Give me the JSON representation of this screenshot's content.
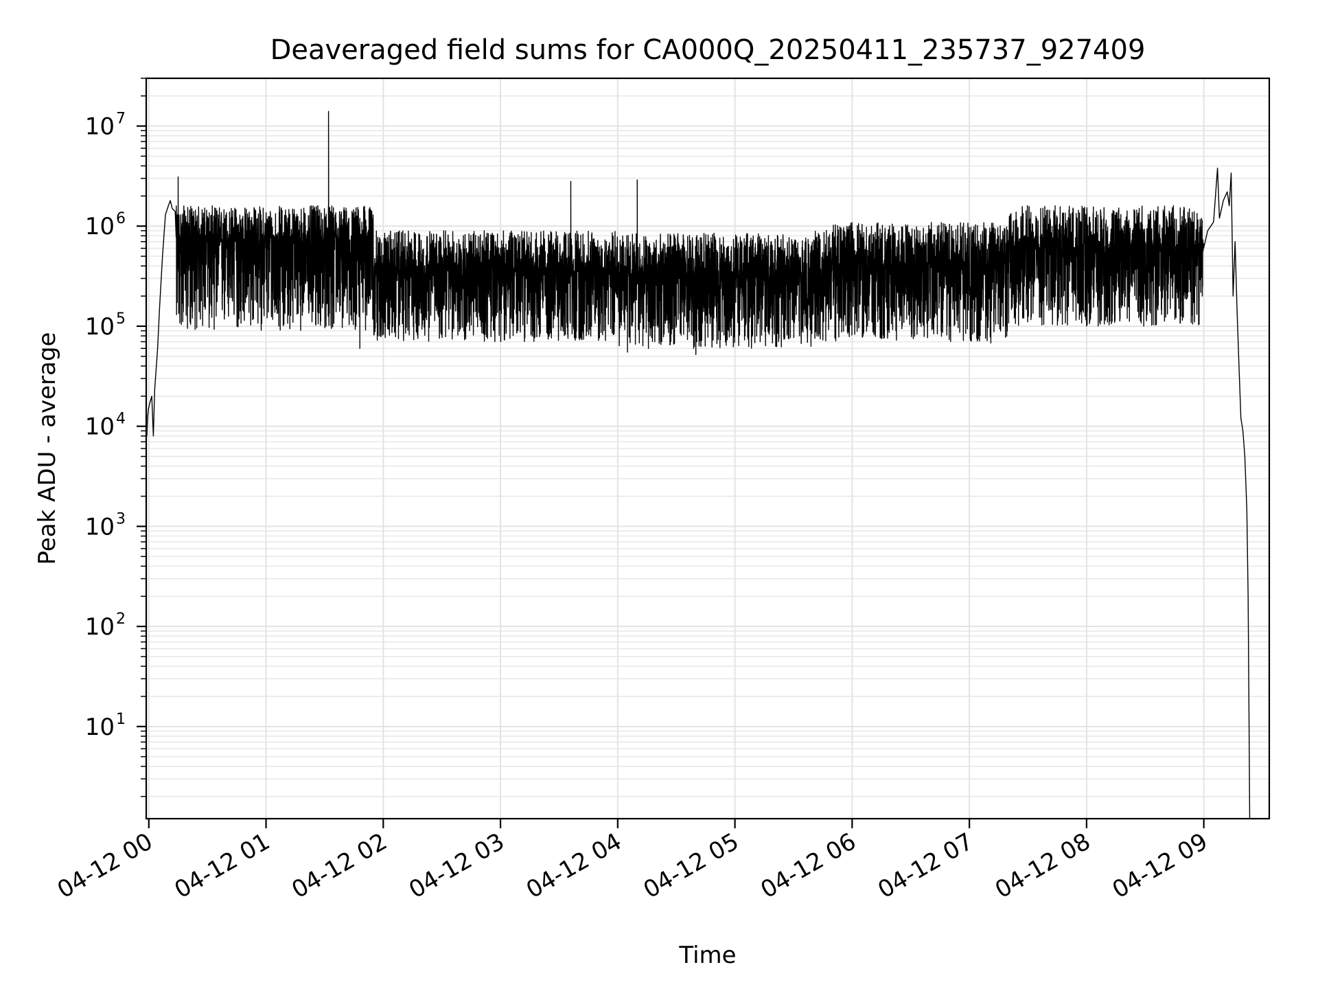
{
  "chart_data": {
    "type": "line",
    "title": "Deaveraged field sums for CA000Q_20250411_235737_927409",
    "xlabel": "Time",
    "ylabel": "Peak ADU - average",
    "yscale": "log",
    "ylim": [
      1.2,
      30000000
    ],
    "xlim": [
      "2025-04-11 23:58:40",
      "2025-04-12 09:33:30"
    ],
    "grid": true,
    "x_ticks": [
      {
        "t": "2025-04-12 00:00",
        "label": "04-12 00"
      },
      {
        "t": "2025-04-12 01:00",
        "label": "04-12 01"
      },
      {
        "t": "2025-04-12 02:00",
        "label": "04-12 02"
      },
      {
        "t": "2025-04-12 03:00",
        "label": "04-12 03"
      },
      {
        "t": "2025-04-12 04:00",
        "label": "04-12 04"
      },
      {
        "t": "2025-04-12 05:00",
        "label": "04-12 05"
      },
      {
        "t": "2025-04-12 06:00",
        "label": "04-12 06"
      },
      {
        "t": "2025-04-12 07:00",
        "label": "04-12 07"
      },
      {
        "t": "2025-04-12 08:00",
        "label": "04-12 08"
      },
      {
        "t": "2025-04-12 09:00",
        "label": "04-12 09"
      }
    ],
    "y_ticks": [
      {
        "value": 10,
        "base": "10",
        "exp": "1"
      },
      {
        "value": 100,
        "base": "10",
        "exp": "2"
      },
      {
        "value": 1000,
        "base": "10",
        "exp": "3"
      },
      {
        "value": 10000,
        "base": "10",
        "exp": "4"
      },
      {
        "value": 100000,
        "base": "10",
        "exp": "5"
      },
      {
        "value": 1000000,
        "base": "10",
        "exp": "6"
      },
      {
        "value": 10000000,
        "base": "10",
        "exp": "7"
      }
    ],
    "series": [
      {
        "color": "#000000",
        "points": [
          [
            "2025-04-11 23:59:00",
            8000
          ],
          [
            "2025-04-11 23:59:20",
            12000
          ],
          [
            "2025-04-11 23:59:50",
            15000
          ],
          [
            "2025-04-12 00:00:30",
            17000
          ],
          [
            "2025-04-12 00:01:30",
            20000
          ],
          [
            "2025-04-12 00:02:20",
            8000
          ],
          [
            "2025-04-12 00:03:00",
            23000
          ],
          [
            "2025-04-12 00:04:30",
            60000
          ],
          [
            "2025-04-12 00:05:30",
            150000
          ],
          [
            "2025-04-12 00:07:00",
            500000
          ],
          [
            "2025-04-12 00:08:30",
            1300000
          ],
          [
            "2025-04-12 00:10:00",
            1600000
          ],
          [
            "2025-04-12 00:11:00",
            1800000
          ],
          [
            "2025-04-12 00:12:00",
            1500000
          ],
          [
            "2025-04-12 00:13:30",
            1400000
          ]
        ],
        "noisy_segments": [
          {
            "from": "2025-04-12 00:14:00",
            "to": "2025-04-12 01:55:00",
            "median": 700000,
            "min": 90000,
            "max": 1600000
          },
          {
            "from": "2025-04-12 01:55:00",
            "to": "2025-04-12 04:00:00",
            "median": 380000,
            "min": 70000,
            "max": 900000
          },
          {
            "from": "2025-04-12 04:00:00",
            "to": "2025-04-12 05:40:00",
            "median": 340000,
            "min": 60000,
            "max": 850000
          },
          {
            "from": "2025-04-12 05:40:00",
            "to": "2025-04-12 07:20:00",
            "median": 420000,
            "min": 70000,
            "max": 1100000
          },
          {
            "from": "2025-04-12 07:20:00",
            "to": "2025-04-12 09:00:00",
            "median": 600000,
            "min": 100000,
            "max": 1600000
          }
        ],
        "spikes": [
          [
            "2025-04-12 00:15:00",
            3100000
          ],
          [
            "2025-04-12 01:32:00",
            14000000
          ],
          [
            "2025-04-12 01:48:00",
            60000
          ],
          [
            "2025-04-12 03:36:00",
            2800000
          ],
          [
            "2025-04-12 04:05:00",
            55000
          ],
          [
            "2025-04-12 04:10:00",
            2900000
          ],
          [
            "2025-04-12 04:40:00",
            52000
          ],
          [
            "2025-04-12 07:11:00",
            68000
          ]
        ],
        "tail_points": [
          [
            "2025-04-12 09:02:00",
            900000
          ],
          [
            "2025-04-12 09:05:00",
            1100000
          ],
          [
            "2025-04-12 09:07:00",
            3800000
          ],
          [
            "2025-04-12 09:08:00",
            1200000
          ],
          [
            "2025-04-12 09:10:00",
            1800000
          ],
          [
            "2025-04-12 09:12:00",
            2200000
          ],
          [
            "2025-04-12 09:13:00",
            1600000
          ],
          [
            "2025-04-12 09:14:00",
            3400000
          ],
          [
            "2025-04-12 09:15:00",
            200000
          ],
          [
            "2025-04-12 09:16:00",
            700000
          ],
          [
            "2025-04-12 09:17:00",
            150000
          ],
          [
            "2025-04-12 09:18:00",
            40000
          ],
          [
            "2025-04-12 09:19:00",
            12000
          ],
          [
            "2025-04-12 09:20:00",
            9000
          ],
          [
            "2025-04-12 09:21:00",
            5000
          ],
          [
            "2025-04-12 09:22:00",
            1500
          ],
          [
            "2025-04-12 09:22:40",
            200
          ],
          [
            "2025-04-12 09:23:10",
            10
          ],
          [
            "2025-04-12 09:23:30",
            1.2
          ]
        ]
      }
    ]
  }
}
